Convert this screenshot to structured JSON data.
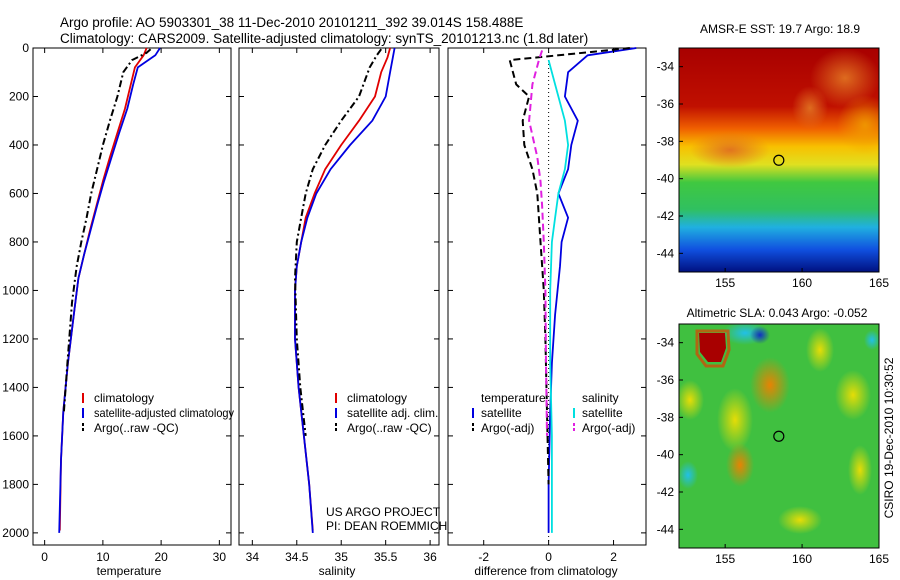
{
  "header": {
    "line1": "Argo profile: AO 5903301_38 11-Dec-2010 20101211_392 39.014S 158.488E",
    "line2": "Climatology: CARS2009. Satellite-adjusted climatology: synTS_20101213.nc (1.8d later)"
  },
  "side_label": "CSIRO 19-Dec-2010 10:30:52",
  "colors": {
    "red": "#e00000",
    "blue": "#0000e0",
    "black": "#000000",
    "cyan": "#00e0e0",
    "magenta": "#e020e0"
  },
  "chart_data": [
    {
      "type": "line",
      "xlabel": "temperature",
      "xticks": [
        "0",
        "10",
        "20",
        "30"
      ],
      "xlim": [
        -2,
        32
      ],
      "yticks": [
        "0",
        "200",
        "400",
        "600",
        "800",
        "1000",
        "1200",
        "1400",
        "1600",
        "1800",
        "2000"
      ],
      "ylim": [
        2050,
        0
      ],
      "legend": [
        "climatology",
        "satellite-adjusted climatology",
        "Argo(..raw -QC)"
      ],
      "series": [
        {
          "name": "climatology",
          "color": "red",
          "dash": "solid",
          "x": [
            17.5,
            17.0,
            15.5,
            14.8,
            13.8,
            12.5,
            11.2,
            10.0,
            8.9,
            7.8,
            6.8,
            5.8,
            5.0,
            4.0,
            3.2,
            2.8,
            2.6
          ],
          "y": [
            0,
            30,
            80,
            150,
            250,
            350,
            450,
            550,
            650,
            750,
            850,
            950,
            1100,
            1300,
            1500,
            1700,
            1990
          ]
        },
        {
          "name": "satellite-adjusted climatology",
          "color": "blue",
          "dash": "solid",
          "x": [
            19.8,
            19.0,
            16.0,
            15.2,
            14.2,
            12.8,
            11.5,
            10.2,
            9.0,
            7.9,
            6.8,
            5.8,
            5.0,
            4.0,
            3.2,
            2.8,
            2.5
          ],
          "y": [
            0,
            30,
            80,
            150,
            250,
            350,
            450,
            550,
            650,
            750,
            850,
            950,
            1100,
            1300,
            1500,
            1700,
            2000
          ]
        },
        {
          "name": "Argo(..raw -QC)",
          "color": "black",
          "dash": "dashdot",
          "x": [
            18.2,
            17.5,
            15.0,
            13.5,
            12.5,
            11.2,
            10.0,
            9.0,
            8.0,
            7.2,
            6.3,
            5.5,
            4.7,
            3.9,
            3.3
          ],
          "y": [
            5,
            20,
            50,
            100,
            200,
            300,
            400,
            500,
            600,
            700,
            800,
            900,
            1050,
            1300,
            1500
          ]
        }
      ]
    },
    {
      "type": "line",
      "xlabel": "salinity",
      "xticks": [
        "34",
        "34.5",
        "35",
        "35.5",
        "36"
      ],
      "xlim": [
        33.85,
        36.1
      ],
      "yticks": [],
      "ylim": [
        2050,
        0
      ],
      "legend": [
        "climatology",
        "satellite adj. clim.",
        "Argo(..raw -QC)"
      ],
      "series": [
        {
          "name": "climatology",
          "color": "red",
          "dash": "solid",
          "x": [
            35.55,
            35.52,
            35.45,
            35.38,
            35.2,
            35.0,
            34.82,
            34.7,
            34.6,
            34.55,
            34.5,
            34.48,
            34.48,
            34.52,
            34.58,
            34.64,
            34.68
          ],
          "y": [
            0,
            40,
            100,
            200,
            300,
            400,
            500,
            600,
            700,
            800,
            900,
            1000,
            1200,
            1400,
            1600,
            1800,
            1990
          ]
        },
        {
          "name": "satellite adj. clim.",
          "color": "blue",
          "dash": "solid",
          "x": [
            35.6,
            35.58,
            35.55,
            35.5,
            35.35,
            35.1,
            34.88,
            34.72,
            34.62,
            34.55,
            34.5,
            34.48,
            34.48,
            34.52,
            34.58,
            34.64,
            34.68
          ],
          "y": [
            0,
            40,
            100,
            200,
            300,
            400,
            500,
            600,
            700,
            800,
            900,
            1000,
            1200,
            1400,
            1600,
            1800,
            2000
          ]
        },
        {
          "name": "Argo(..raw -QC)",
          "color": "black",
          "dash": "dashdot",
          "x": [
            35.45,
            35.4,
            35.32,
            35.2,
            35.0,
            34.82,
            34.68,
            34.6,
            34.55,
            34.5,
            34.48,
            34.5,
            34.54,
            34.6
          ],
          "y": [
            5,
            30,
            80,
            200,
            300,
            400,
            500,
            600,
            700,
            800,
            950,
            1200,
            1400,
            1600
          ]
        }
      ],
      "annotations": [
        "US ARGO PROJECT",
        "PI: DEAN ROEMMICH"
      ]
    },
    {
      "type": "line",
      "xlabel": "difference from climatology",
      "xticks": [
        "-2",
        "0",
        "2"
      ],
      "xlim": [
        -3.1,
        3.0
      ],
      "yticks": [],
      "ylim": [
        2050,
        0
      ],
      "legend_groups": [
        {
          "title": "temperature",
          "items": [
            "satellite",
            "Argo(-adj)"
          ]
        },
        {
          "title": "salinity",
          "items": [
            "satellite",
            "Argo(-adj)"
          ]
        }
      ],
      "series": [
        {
          "name": "temperature satellite",
          "color": "blue",
          "dash": "solid",
          "x": [
            2.7,
            1.2,
            0.6,
            0.5,
            0.9,
            0.7,
            0.6,
            0.3,
            0.6,
            0.4,
            0.35,
            0.2,
            0.1,
            0.05,
            0.0,
            0.0
          ],
          "y": [
            0,
            30,
            100,
            200,
            300,
            400,
            500,
            600,
            700,
            800,
            900,
            1100,
            1300,
            1500,
            1800,
            2000
          ]
        },
        {
          "name": "temperature Argo(-adj)",
          "color": "black",
          "dash": "dash",
          "x": [
            2.5,
            0.3,
            -1.2,
            -1.0,
            -0.6,
            -0.8,
            -0.75,
            -0.5,
            -0.35,
            -0.25,
            -0.15,
            -0.1,
            -0.05,
            0.0
          ],
          "y": [
            0,
            30,
            50,
            150,
            200,
            300,
            400,
            500,
            600,
            800,
            1000,
            1200,
            1500,
            1800
          ]
        },
        {
          "name": "salinity satellite",
          "color": "cyan",
          "dash": "solid",
          "x": [
            0.0,
            0.2,
            0.5,
            0.6,
            0.5,
            0.3,
            0.2,
            0.1,
            0.05,
            0.05,
            0.1,
            0.1
          ],
          "y": [
            50,
            150,
            300,
            400,
            500,
            600,
            700,
            800,
            1000,
            1300,
            1600,
            2000
          ]
        },
        {
          "name": "salinity Argo(-adj)",
          "color": "magenta",
          "dash": "dash",
          "x": [
            -0.2,
            -0.3,
            -0.5,
            -0.6,
            -0.35,
            -0.25,
            -0.2,
            -0.15,
            -0.1,
            -0.08,
            -0.05
          ],
          "y": [
            10,
            50,
            150,
            300,
            450,
            550,
            650,
            800,
            1000,
            1300,
            1600
          ]
        }
      ]
    },
    {
      "type": "heatmap",
      "title": "AMSR-E SST: 19.7  Argo: 18.9",
      "xticks": [
        "155",
        "160",
        "165"
      ],
      "yticks": [
        "-34",
        "-36",
        "-38",
        "-40",
        "-42",
        "-44"
      ],
      "xlim": [
        152,
        165
      ],
      "ylim": [
        -45,
        -33
      ],
      "marker": {
        "lon": 158.488,
        "lat": -39.014
      }
    },
    {
      "type": "heatmap",
      "title": "Altimetric SLA: 0.043  Argo: -0.052",
      "xticks": [
        "155",
        "160",
        "165"
      ],
      "yticks": [
        "-34",
        "-36",
        "-38",
        "-40",
        "-42",
        "-44"
      ],
      "xlim": [
        152,
        165
      ],
      "ylim": [
        -45,
        -33
      ],
      "marker": {
        "lon": 158.488,
        "lat": -39.014
      }
    }
  ]
}
